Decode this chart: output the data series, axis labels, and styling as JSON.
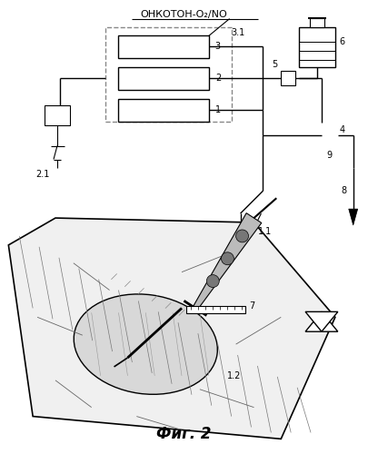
{
  "title": "Фиг. 2",
  "header_text": "ОНКОТОН-О₂/NO",
  "bg_color": "#ffffff",
  "line_color": "#000000",
  "fig_width": 4.05,
  "fig_height": 5.0,
  "dpi": 100
}
